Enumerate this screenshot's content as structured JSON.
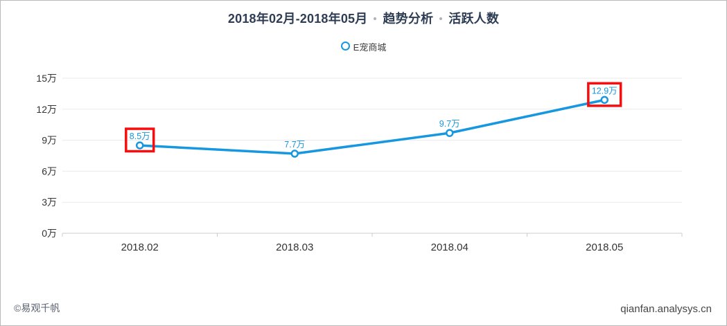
{
  "title": {
    "range": "2018年02月-2018年05月",
    "analysis_type": "趋势分析",
    "metric": "活跃人数"
  },
  "legend": {
    "label": "E宠商城"
  },
  "chart_data": {
    "type": "line",
    "title": "2018年02月-2018年05月 · 趋势分析 · 活跃人数",
    "categories": [
      "2018.02",
      "2018.03",
      "2018.04",
      "2018.05"
    ],
    "series": [
      {
        "name": "E宠商城",
        "values": [
          8.5,
          7.7,
          9.7,
          12.9
        ],
        "data_labels": [
          "8.5万",
          "7.7万",
          "9.7万",
          "12.9万"
        ]
      }
    ],
    "unit": "万",
    "highlighted_points": [
      0,
      3
    ],
    "y_axis": {
      "min": 0,
      "max": 15,
      "interval": 3,
      "tick_labels": [
        "0万",
        "3万",
        "6万",
        "9万",
        "12万",
        "15万"
      ]
    },
    "grid": true,
    "legend_position": "top",
    "colors": {
      "line": "#1697df",
      "marker_fill": "#ffffff",
      "data_label": "#1697df",
      "highlight_box": "#f70d0d",
      "grid_line": "#eaeaea",
      "axis_line": "#cccccc",
      "axis_text": "#333333"
    }
  },
  "footer": {
    "left": "©易观千帆",
    "right": "qianfan.analysys.cn"
  }
}
